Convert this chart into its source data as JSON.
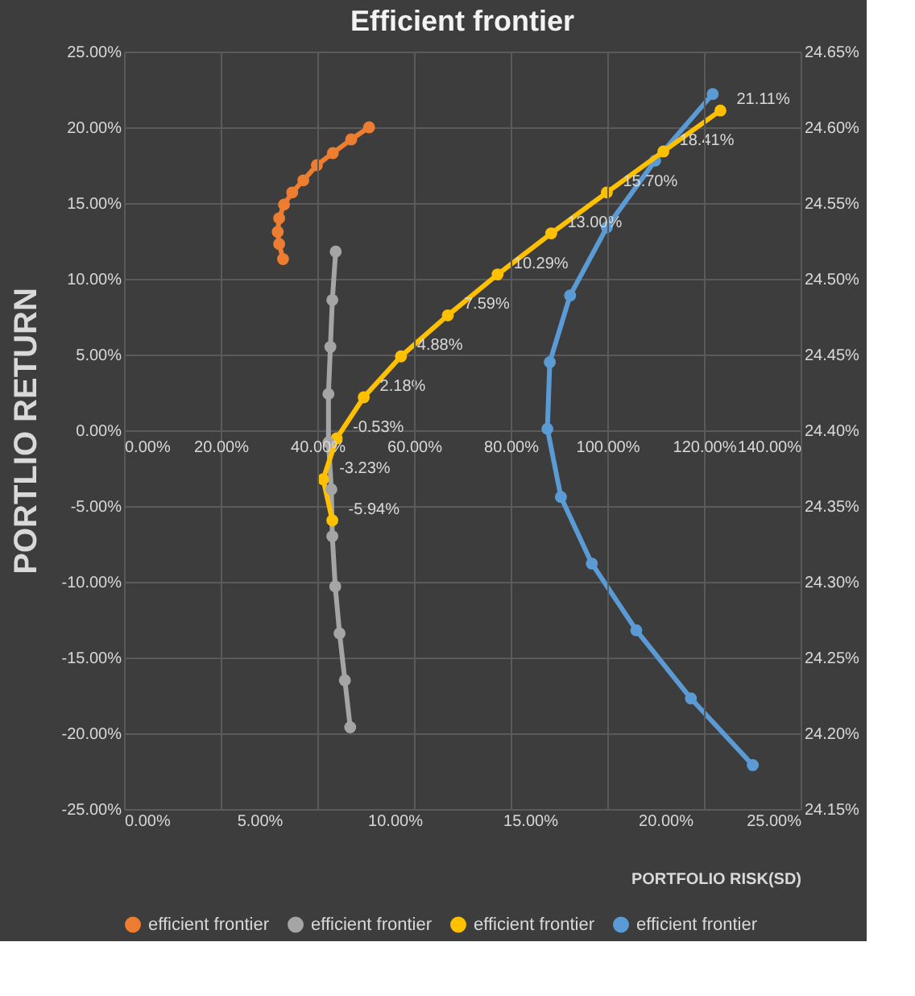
{
  "chart_data": {
    "type": "line",
    "title": "Efficient frontier",
    "ylabel": "PORTLIO RETURN",
    "x2label": "PORTFOLIO RISK(SD)",
    "xlim": [
      0,
      140
    ],
    "xticks": [
      {
        "value": 0,
        "label": "0.00%"
      },
      {
        "value": 20,
        "label": "20.00%"
      },
      {
        "value": 40,
        "label": "40.00%"
      },
      {
        "value": 60,
        "label": "60.00%"
      },
      {
        "value": 80,
        "label": "80.00%"
      },
      {
        "value": 100,
        "label": "100.00%"
      },
      {
        "value": 120,
        "label": "120.00%"
      },
      {
        "value": 140,
        "label": "140.00%"
      }
    ],
    "x2lim": [
      0,
      25
    ],
    "x2ticks": [
      {
        "value": 0,
        "label": "0.00%"
      },
      {
        "value": 5,
        "label": "5.00%"
      },
      {
        "value": 10,
        "label": "10.00%"
      },
      {
        "value": 15,
        "label": "15.00%"
      },
      {
        "value": 20,
        "label": "20.00%"
      },
      {
        "value": 25,
        "label": "25.00%"
      }
    ],
    "ylim": [
      -25,
      25
    ],
    "yticks": [
      {
        "value": -25,
        "label": "-25.00%"
      },
      {
        "value": -20,
        "label": "-20.00%"
      },
      {
        "value": -15,
        "label": "-15.00%"
      },
      {
        "value": -10,
        "label": "-10.00%"
      },
      {
        "value": -5,
        "label": "-5.00%"
      },
      {
        "value": 0,
        "label": "0.00%"
      },
      {
        "value": 5,
        "label": "5.00%"
      },
      {
        "value": 10,
        "label": "10.00%"
      },
      {
        "value": 15,
        "label": "15.00%"
      },
      {
        "value": 20,
        "label": "20.00%"
      },
      {
        "value": 25,
        "label": "25.00%"
      }
    ],
    "y2lim": [
      24.15,
      24.65
    ],
    "y2ticks": [
      {
        "value": 24.15,
        "label": "24.15%"
      },
      {
        "value": 24.2,
        "label": "24.20%"
      },
      {
        "value": 24.25,
        "label": "24.25%"
      },
      {
        "value": 24.3,
        "label": "24.30%"
      },
      {
        "value": 24.35,
        "label": "24.35%"
      },
      {
        "value": 24.4,
        "label": "24.40%"
      },
      {
        "value": 24.45,
        "label": "24.45%"
      },
      {
        "value": 24.5,
        "label": "24.50%"
      },
      {
        "value": 24.55,
        "label": "24.55%"
      },
      {
        "value": 24.6,
        "label": "24.60%"
      },
      {
        "value": 24.65,
        "label": "24.65%"
      }
    ],
    "grid": true,
    "legend": "bottom",
    "marker": "circle",
    "line_style": "solid",
    "series": [
      {
        "name": "efficient frontier",
        "color": "#ed7d31",
        "x": [
          50.7,
          47.0,
          43.2,
          39.9,
          37.1,
          34.8,
          33.1,
          32.1,
          31.8,
          32.1,
          32.9
        ],
        "values": [
          20.0,
          19.2,
          18.3,
          17.5,
          16.5,
          15.7,
          14.9,
          14.0,
          13.1,
          12.3,
          11.3
        ]
      },
      {
        "name": "efficient frontier",
        "color": "#a5a5a5",
        "x": [
          43.8,
          43.1,
          42.7,
          42.3,
          42.3,
          42.9,
          43.1,
          43.7,
          44.6,
          45.7,
          46.8
        ],
        "values": [
          11.8,
          8.6,
          5.5,
          2.4,
          -0.8,
          -3.9,
          -7.0,
          -10.3,
          -13.4,
          -16.5,
          -19.6
        ]
      },
      {
        "name": "efficient frontier",
        "color": "#ffc000",
        "x": [
          43.1,
          41.2,
          44.0,
          49.6,
          57.3,
          67.0,
          77.3,
          88.4,
          99.9,
          111.6,
          123.4
        ],
        "values": [
          -5.94,
          -3.23,
          -0.53,
          2.18,
          4.88,
          7.59,
          10.29,
          13.0,
          15.7,
          18.41,
          21.11
        ],
        "value_labels": [
          "-5.94%",
          "-3.23%",
          "-0.53%",
          "2.18%",
          "4.88%",
          "7.59%",
          "10.29%",
          "13.00%",
          "15.70%",
          "18.41%",
          "21.11%"
        ]
      },
      {
        "name": "efficient frontier",
        "color": "#5b9bd5",
        "axis": "y2",
        "x": [
          121.8,
          109.9,
          99.9,
          92.3,
          88.1,
          87.6,
          90.4,
          96.8,
          106.0,
          117.3,
          130.1
        ],
        "values": [
          24.622,
          24.578,
          24.534,
          24.489,
          24.445,
          24.401,
          24.356,
          24.312,
          24.268,
          24.223,
          24.179
        ]
      }
    ]
  }
}
